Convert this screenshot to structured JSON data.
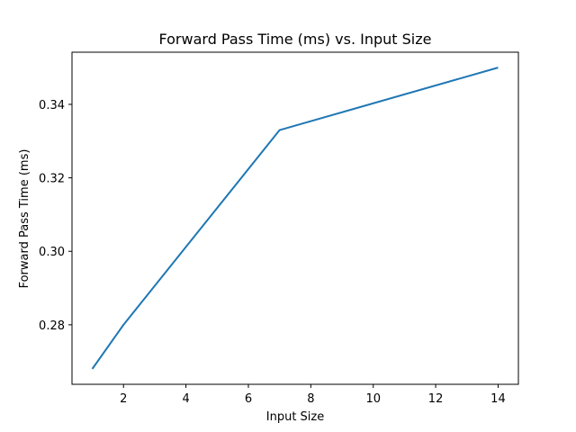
{
  "chart_data": {
    "type": "line",
    "title": "Forward Pass Time (ms) vs. Input Size",
    "xlabel": "Input Size",
    "ylabel": "Forward Pass Time (ms)",
    "xlim": [
      0.35,
      14.65
    ],
    "ylim": [
      0.2638,
      0.3542
    ],
    "xticks": [
      2,
      4,
      6,
      8,
      10,
      12,
      14
    ],
    "yticks": [
      0.28,
      0.3,
      0.32,
      0.34
    ],
    "xtick_labels": [
      "2",
      "4",
      "6",
      "8",
      "10",
      "12",
      "14"
    ],
    "ytick_labels": [
      "0.28",
      "0.30",
      "0.32",
      "0.34"
    ],
    "grid": false,
    "legend": "none",
    "series": [
      {
        "color": "#1f77b4",
        "x": [
          1,
          2,
          7,
          14
        ],
        "y": [
          0.268,
          0.28,
          0.333,
          0.35
        ]
      }
    ]
  }
}
